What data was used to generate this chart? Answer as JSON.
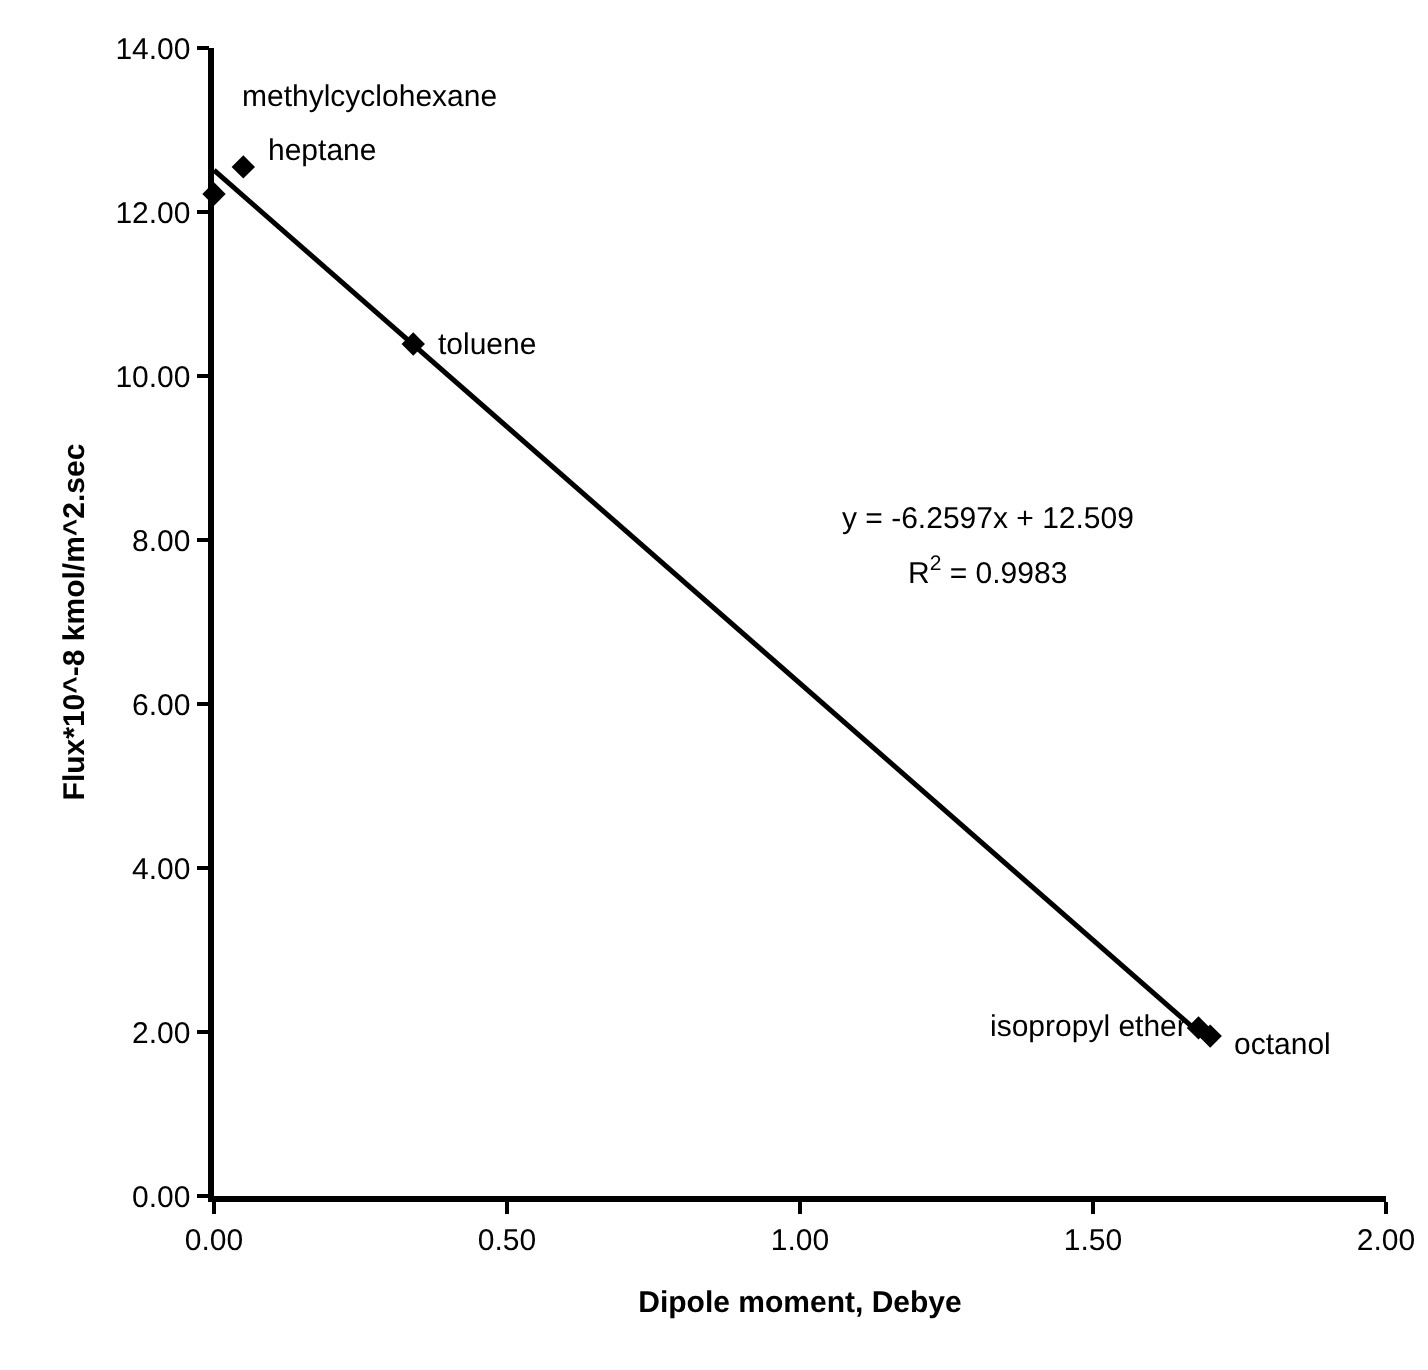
{
  "chart_data": {
    "type": "scatter",
    "xlabel": "Dipole moment, Debye",
    "ylabel": "Flux*10^-8 kmol/m^2.sec",
    "x": [
      0.05,
      0,
      0.34,
      1.68,
      1.7
    ],
    "series": [
      {
        "color": "#000000",
        "marker": "diamond",
        "values": [
          12.55,
          12.22,
          10.39,
          2.05,
          1.95
        ]
      },
      {
        "type": "line",
        "color": "#000000",
        "marker": "none",
        "line_style": "solid",
        "x": [
          0,
          1.7
        ],
        "values": [
          12.51,
          1.87
        ]
      }
    ],
    "xlim": [
      0,
      2
    ],
    "xticks": [
      {
        "value": 0,
        "label": "0.00"
      },
      {
        "value": 0.5,
        "label": "0.50"
      },
      {
        "value": 1,
        "label": "1.00"
      },
      {
        "value": 1.5,
        "label": "1.50"
      },
      {
        "value": 2,
        "label": "2.00"
      }
    ],
    "ylim": [
      0,
      14
    ],
    "yticks": [
      {
        "value": 0,
        "label": "0.00"
      },
      {
        "value": 2,
        "label": "2.00"
      },
      {
        "value": 4,
        "label": "4.00"
      },
      {
        "value": 6,
        "label": "6.00"
      },
      {
        "value": 8,
        "label": "8.00"
      },
      {
        "value": 10,
        "label": "10.00"
      },
      {
        "value": 12,
        "label": "12.00"
      },
      {
        "value": 14,
        "label": "14.00"
      }
    ],
    "grid": false,
    "legend": false,
    "annotations": [
      {
        "text": "heptane",
        "x": 0.05,
        "y": 12.55
      },
      {
        "text": "methylcyclohexane",
        "x": 0,
        "y": 12.22
      },
      {
        "text": "toluene",
        "x": 0.34,
        "y": 10.39
      },
      {
        "text": "isopropyl ether",
        "x": 1.68,
        "y": 2.05
      },
      {
        "text": "octanol",
        "x": 1.7,
        "y": 1.95
      },
      "y = -6.2597x + 12.509",
      "R$^{2}$ = 0.9983"
    ]
  }
}
